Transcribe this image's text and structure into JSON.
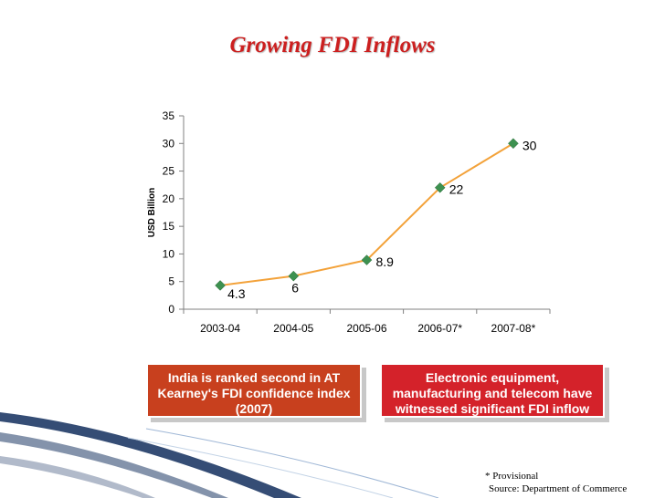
{
  "slide": {
    "title": "Growing FDI Inflows",
    "box_left": "India is ranked second in AT Kearney's FDI confidence index (2007)",
    "box_right": "Electronic equipment, manufacturing and telecom have witnessed significant FDI inflow",
    "note_provisional": "* Provisional",
    "note_source": "Source: Department of Commerce",
    "colors": {
      "title": "#cc1f1f",
      "line": "#f3a23a",
      "marker": "#3d9150",
      "box_left": "#c8401e",
      "box_right": "#d4222a",
      "deco": "#1f3a66"
    }
  },
  "chart_data": {
    "type": "line",
    "title": "",
    "xlabel": "",
    "ylabel": "USD Billion",
    "categories": [
      "2003-04",
      "2004-05",
      "2005-06",
      "2006-07*",
      "2007-08*"
    ],
    "series": [
      {
        "values": [
          4.3,
          6,
          8.9,
          22,
          30
        ],
        "labels": [
          "4.3",
          "6",
          "8.9",
          "22",
          "30"
        ]
      }
    ],
    "ylim": [
      0,
      35
    ],
    "yticks": [
      0,
      5,
      10,
      15,
      20,
      25,
      30,
      35
    ],
    "grid": false,
    "legend": "none"
  }
}
